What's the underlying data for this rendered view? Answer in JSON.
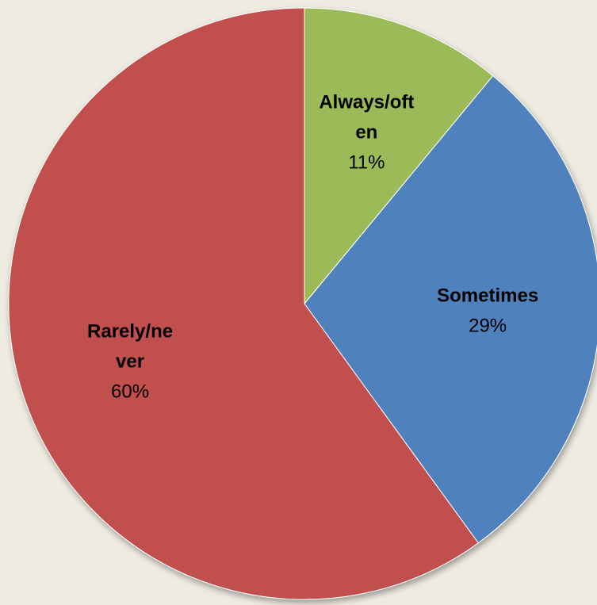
{
  "chart_data": {
    "type": "pie",
    "title": "",
    "start_angle_deg": 0,
    "direction": "clockwise",
    "slices": [
      {
        "name": "Always/often",
        "name_lines": [
          "Always/oft",
          "en"
        ],
        "value": 11,
        "label": "11%",
        "color": "#9BBB59"
      },
      {
        "name": "Sometimes",
        "name_lines": [
          "Sometimes"
        ],
        "value": 29,
        "label": "29%",
        "color": "#4F81BD"
      },
      {
        "name": "Rarely/never",
        "name_lines": [
          "Rarely/ne",
          "ver"
        ],
        "value": 60,
        "label": "60%",
        "color": "#C0504D"
      }
    ],
    "slice_stroke": "#FFFFFF",
    "background": "#EEECE1"
  }
}
